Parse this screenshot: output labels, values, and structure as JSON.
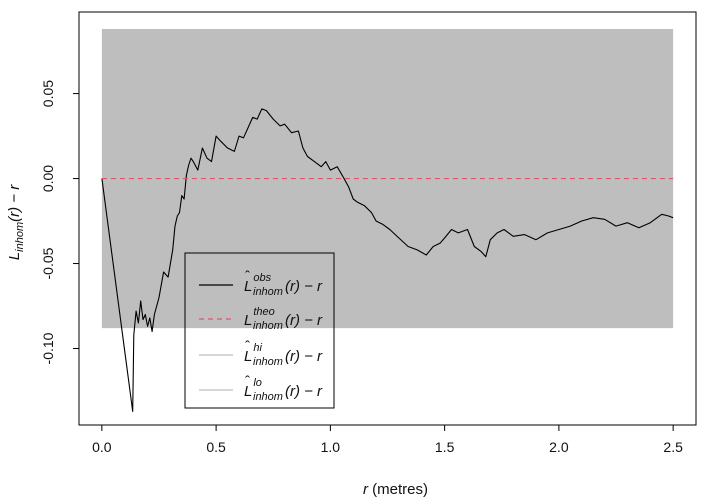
{
  "chart_data": {
    "type": "line",
    "xlabel": {
      "var": "r",
      "rest": " (metres)"
    },
    "ylabel": {
      "L": "L",
      "sub": "inhom",
      "rest": "(r) − r"
    },
    "xlim": [
      -0.1,
      2.6
    ],
    "ylim": [
      -0.145,
      0.098
    ],
    "xticks": [
      {
        "value": 0.0,
        "label": "0.0"
      },
      {
        "value": 0.5,
        "label": "0.5"
      },
      {
        "value": 1.0,
        "label": "1.0"
      },
      {
        "value": 1.5,
        "label": "1.5"
      },
      {
        "value": 2.0,
        "label": "2.0"
      },
      {
        "value": 2.5,
        "label": "2.5"
      }
    ],
    "yticks": [
      {
        "value": -0.1,
        "label": "-0.10"
      },
      {
        "value": -0.05,
        "label": "-0.05"
      },
      {
        "value": 0.0,
        "label": "0.00"
      },
      {
        "value": 0.05,
        "label": "0.05"
      }
    ],
    "envelope": {
      "name": "hi / lo envelope",
      "x": [
        0,
        2.5
      ],
      "hi": 0.088,
      "lo": -0.088,
      "color": "#bebebe"
    },
    "series": [
      {
        "key": "obs",
        "color": "#000000",
        "dash": "none",
        "x": [
          0,
          0.135,
          0.14,
          0.15,
          0.16,
          0.17,
          0.18,
          0.19,
          0.2,
          0.21,
          0.22,
          0.23,
          0.25,
          0.27,
          0.29,
          0.3,
          0.31,
          0.32,
          0.33,
          0.34,
          0.35,
          0.36,
          0.37,
          0.38,
          0.39,
          0.4,
          0.42,
          0.44,
          0.46,
          0.48,
          0.5,
          0.52,
          0.55,
          0.58,
          0.6,
          0.62,
          0.64,
          0.66,
          0.68,
          0.7,
          0.72,
          0.75,
          0.78,
          0.8,
          0.83,
          0.86,
          0.88,
          0.9,
          0.93,
          0.96,
          0.98,
          1.0,
          1.03,
          1.06,
          1.08,
          1.1,
          1.12,
          1.15,
          1.18,
          1.2,
          1.23,
          1.26,
          1.3,
          1.34,
          1.38,
          1.42,
          1.45,
          1.48,
          1.5,
          1.53,
          1.56,
          1.6,
          1.63,
          1.66,
          1.68,
          1.7,
          1.73,
          1.76,
          1.8,
          1.85,
          1.9,
          1.95,
          2.0,
          2.05,
          2.1,
          2.15,
          2.2,
          2.25,
          2.3,
          2.35,
          2.4,
          2.45,
          2.48,
          2.5
        ],
        "y": [
          0.0,
          -0.137,
          -0.092,
          -0.078,
          -0.085,
          -0.072,
          -0.083,
          -0.08,
          -0.087,
          -0.082,
          -0.09,
          -0.08,
          -0.07,
          -0.055,
          -0.058,
          -0.05,
          -0.042,
          -0.028,
          -0.022,
          -0.02,
          -0.01,
          -0.012,
          0.002,
          0.008,
          0.012,
          0.01,
          0.005,
          0.018,
          0.012,
          0.01,
          0.025,
          0.022,
          0.018,
          0.016,
          0.025,
          0.024,
          0.03,
          0.036,
          0.035,
          0.041,
          0.04,
          0.035,
          0.031,
          0.032,
          0.027,
          0.028,
          0.018,
          0.013,
          0.01,
          0.007,
          0.01,
          0.005,
          0.007,
          0.0,
          -0.005,
          -0.012,
          -0.014,
          -0.016,
          -0.02,
          -0.025,
          -0.027,
          -0.03,
          -0.035,
          -0.04,
          -0.042,
          -0.045,
          -0.04,
          -0.038,
          -0.035,
          -0.03,
          -0.032,
          -0.03,
          -0.04,
          -0.043,
          -0.046,
          -0.036,
          -0.032,
          -0.03,
          -0.034,
          -0.033,
          -0.036,
          -0.032,
          -0.03,
          -0.028,
          -0.025,
          -0.023,
          -0.024,
          -0.028,
          -0.026,
          -0.029,
          -0.026,
          -0.021,
          -0.022,
          -0.023
        ]
      },
      {
        "key": "theo",
        "color": "#df536b",
        "dash": "5 4",
        "x": [
          0,
          2.5
        ],
        "y": [
          0,
          0
        ]
      }
    ],
    "legend": {
      "placement": "bottom-left",
      "entries": [
        {
          "hat": true,
          "sup": "obs",
          "color": "#000000",
          "dash": "none"
        },
        {
          "hat": false,
          "sup": "theo",
          "color": "#df536b",
          "dash": "5 4"
        },
        {
          "hat": true,
          "sup": "hi",
          "color": "#bebebe",
          "dash": "none"
        },
        {
          "hat": true,
          "sup": "lo",
          "color": "#bebebe",
          "dash": "none"
        }
      ],
      "base": "L",
      "sub": "inhom",
      "rest": "(r) − r"
    }
  }
}
